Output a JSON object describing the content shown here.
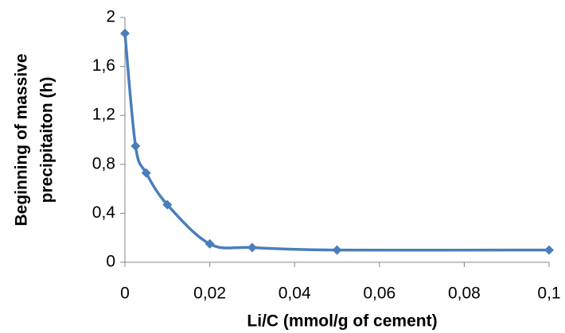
{
  "chart_data": {
    "type": "line",
    "xlabel": "Li/C  (mmol/g of cement)",
    "ylabel": [
      "Beginning of massive",
      "precipitaiton (h)"
    ],
    "x": [
      0,
      0.0025,
      0.005,
      0.01,
      0.02,
      0.03,
      0.05,
      0.1
    ],
    "series": [
      {
        "color": "#4a7ebb",
        "values": [
          1.87,
          0.95,
          0.73,
          0.47,
          0.15,
          0.12,
          0.1,
          0.1
        ]
      }
    ],
    "xlim": [
      0,
      0.1
    ],
    "xticks": [
      0,
      {
        "value": 0.02,
        "label": "0,02"
      },
      {
        "value": 0.04,
        "label": "0,04"
      },
      {
        "value": 0.06,
        "label": "0,06"
      },
      {
        "value": 0.08,
        "label": "0,08"
      },
      {
        "value": 0.1,
        "label": "0,1"
      }
    ],
    "ylim": [
      0,
      2
    ],
    "yticks": [
      0,
      {
        "value": 0.4,
        "label": "0,4"
      },
      {
        "value": 0.8,
        "label": "0,8"
      },
      {
        "value": 1.2,
        "label": "1,2"
      },
      {
        "value": 1.6,
        "label": "1,6"
      },
      2
    ],
    "grid": false,
    "smooth": true
  }
}
